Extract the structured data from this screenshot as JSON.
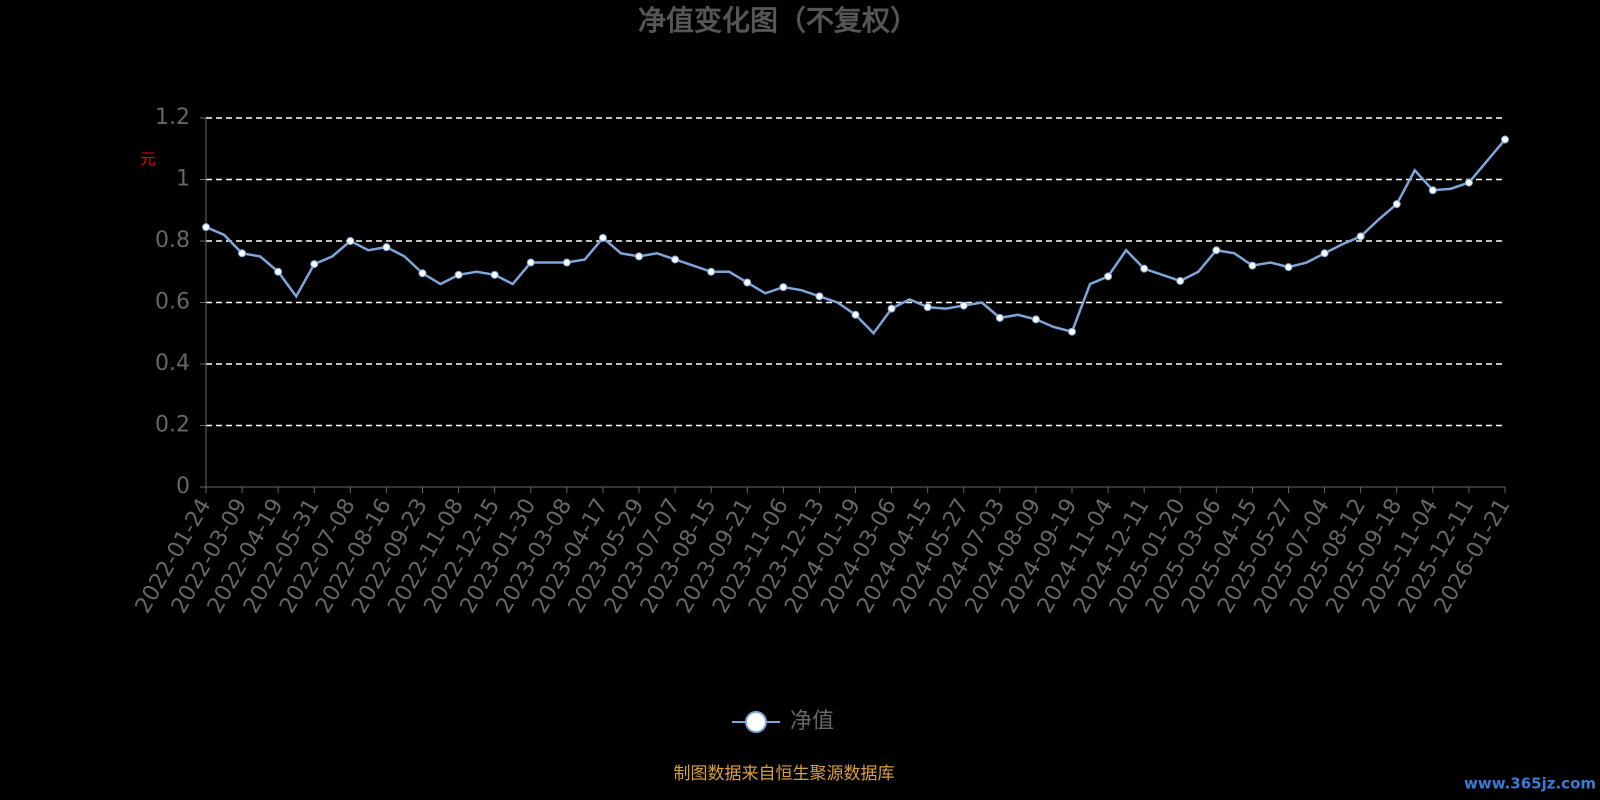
{
  "chart_data": {
    "type": "line",
    "title": "净值变化图（不复权）",
    "y_label": "元",
    "categories": [
      "2022-01-24",
      null,
      "2022-03-09",
      null,
      "2022-04-19",
      null,
      "2022-05-31",
      null,
      "2022-07-08",
      null,
      "2022-08-16",
      null,
      "2022-09-23",
      null,
      "2022-11-08",
      null,
      "2022-12-15",
      null,
      "2023-01-30",
      null,
      "2023-03-08",
      null,
      "2023-04-17",
      null,
      "2023-05-29",
      null,
      "2023-07-07",
      null,
      "2023-08-15",
      null,
      "2023-09-21",
      null,
      "2023-11-06",
      null,
      "2023-12-13",
      null,
      "2024-01-19",
      null,
      "2024-03-06",
      null,
      "2024-04-15",
      null,
      "2024-05-27",
      null,
      "2024-07-03",
      null,
      "2024-08-09",
      null,
      "2024-09-19",
      null,
      "2024-11-04",
      null,
      "2024-12-11",
      null,
      "2025-01-20",
      null,
      "2025-03-06",
      null,
      "2025-04-15",
      null,
      "2025-05-27",
      null,
      "2025-07-04",
      null,
      "2025-08-12",
      null,
      "2025-09-18",
      null,
      "2025-11-04",
      null,
      "2025-12-11",
      null,
      "2026-01-21"
    ],
    "series": [
      {
        "name": "净值",
        "color": "#7fa6d9",
        "values": [
          0.845,
          0.82,
          0.76,
          0.75,
          0.7,
          0.62,
          0.725,
          0.75,
          0.8,
          0.77,
          0.78,
          0.75,
          0.695,
          0.66,
          0.69,
          0.7,
          0.69,
          0.66,
          0.73,
          0.73,
          0.73,
          0.74,
          0.81,
          0.76,
          0.75,
          0.76,
          0.74,
          0.72,
          0.7,
          0.7,
          0.665,
          0.63,
          0.65,
          0.64,
          0.62,
          0.6,
          0.56,
          0.5,
          0.58,
          0.61,
          0.585,
          0.58,
          0.59,
          0.6,
          0.55,
          0.56,
          0.545,
          0.52,
          0.505,
          0.66,
          0.685,
          0.77,
          0.71,
          0.69,
          0.67,
          0.7,
          0.77,
          0.76,
          0.72,
          0.73,
          0.715,
          0.73,
          0.76,
          0.79,
          0.815,
          0.87,
          0.92,
          1.03,
          0.965,
          0.97,
          0.99,
          1.06,
          1.13
        ]
      }
    ],
    "ylim": [
      0,
      1.2
    ],
    "yticks": [
      0,
      0.2,
      0.4,
      0.6,
      0.8,
      1,
      1.2
    ],
    "grid": true,
    "legend": "bottom",
    "source": "制图数据来自恒生聚源数据库",
    "watermark": "www.365jz.com"
  }
}
